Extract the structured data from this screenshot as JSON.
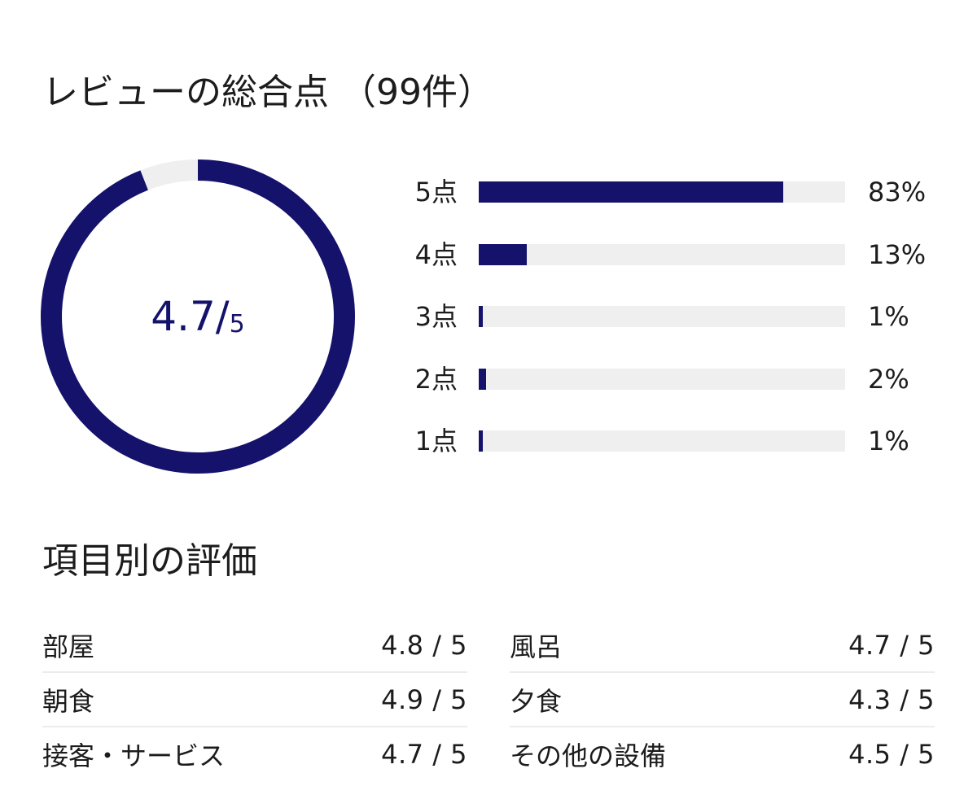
{
  "overall": {
    "title": "レビューの総合点 （99件）",
    "score": "4.7",
    "separator": "/",
    "max": "5",
    "score_value": 4.7,
    "max_value": 5,
    "colors": {
      "accent": "#14126b",
      "track": "#efefef"
    }
  },
  "distribution": [
    {
      "label": "5点",
      "percent": "83%",
      "value": 83
    },
    {
      "label": "4点",
      "percent": "13%",
      "value": 13
    },
    {
      "label": "3点",
      "percent": "1%",
      "value": 1
    },
    {
      "label": "2点",
      "percent": "2%",
      "value": 2
    },
    {
      "label": "1点",
      "percent": "1%",
      "value": 1
    }
  ],
  "categories": {
    "title": "項目別の評価",
    "items": [
      {
        "name": "部屋",
        "score": "4.8 / 5"
      },
      {
        "name": "風呂",
        "score": "4.7 / 5"
      },
      {
        "name": "朝食",
        "score": "4.9 / 5"
      },
      {
        "name": "夕食",
        "score": "4.3 / 5"
      },
      {
        "name": "接客・サービス",
        "score": "4.7 / 5"
      },
      {
        "name": "その他の設備",
        "score": "4.5 / 5"
      }
    ]
  }
}
